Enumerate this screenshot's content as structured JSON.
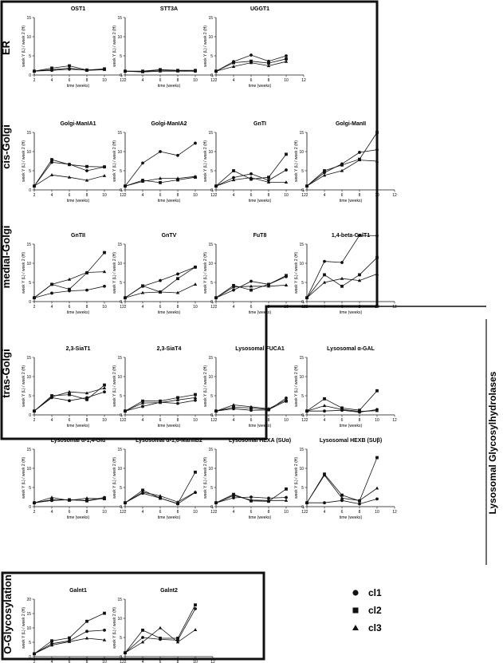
{
  "sections": {
    "er": "ER",
    "cis": "cis-Golgi",
    "medial": "medial-Golgi",
    "tras": "tras-Golgi",
    "lysosomal": "Lysosomal Glycosylhydrolases",
    "oglyc": "O-Glycosylation"
  },
  "legend": {
    "items": [
      {
        "label": "cl1",
        "marker": "circle"
      },
      {
        "label": "cl2",
        "marker": "square"
      },
      {
        "label": "cl3",
        "marker": "triangle"
      }
    ]
  },
  "axis_labels": {
    "xlabel": "time (weeks)",
    "ylabel": "week  Y  (L) / week 2  (H)"
  },
  "chart_data": [
    {
      "type": "line",
      "title": "OST1",
      "xlim": [
        2,
        12
      ],
      "ylim": [
        0,
        15
      ],
      "xticks": [
        2,
        4,
        6,
        8,
        10,
        12
      ],
      "yticks": [
        0,
        5,
        10,
        15
      ],
      "x": [
        2,
        4,
        6,
        8,
        10
      ],
      "series": [
        {
          "name": "cl1",
          "values": [
            1,
            1.2,
            1.5,
            1.3,
            1.5
          ]
        },
        {
          "name": "cl2",
          "values": [
            1,
            1.8,
            2.4,
            1.3,
            1.6
          ]
        },
        {
          "name": "cl3",
          "values": [
            1,
            1.4,
            1.8,
            1.2,
            1.4
          ]
        }
      ]
    },
    {
      "type": "line",
      "title": "STT3A",
      "xlim": [
        2,
        12
      ],
      "ylim": [
        0,
        15
      ],
      "xticks": [
        2,
        4,
        6,
        8,
        10,
        12
      ],
      "yticks": [
        0,
        5,
        10,
        15
      ],
      "x": [
        2,
        4,
        6,
        8,
        10
      ],
      "series": [
        {
          "name": "cl1",
          "values": [
            1,
            0.9,
            1.3,
            1.1,
            1.0
          ]
        },
        {
          "name": "cl2",
          "values": [
            1,
            1.0,
            1.4,
            1.2,
            1.2
          ]
        },
        {
          "name": "cl3",
          "values": [
            1,
            0.8,
            1.0,
            1.0,
            1.0
          ]
        }
      ]
    },
    {
      "type": "line",
      "title": "UGGT1",
      "xlim": [
        2,
        12
      ],
      "ylim": [
        0,
        15
      ],
      "xticks": [
        2,
        4,
        6,
        8,
        10,
        12
      ],
      "yticks": [
        0,
        5,
        10,
        15
      ],
      "x": [
        2,
        4,
        6,
        8,
        10
      ],
      "series": [
        {
          "name": "cl1",
          "values": [
            1,
            3.5,
            5.2,
            3.6,
            5.0
          ]
        },
        {
          "name": "cl2",
          "values": [
            1,
            3.2,
            3.6,
            3.1,
            4.2
          ]
        },
        {
          "name": "cl3",
          "values": [
            1,
            2.2,
            3.2,
            2.4,
            3.5
          ]
        }
      ]
    },
    {
      "type": "line",
      "title": "Golgi-ManIA1",
      "xlim": [
        2,
        12
      ],
      "ylim": [
        0,
        15
      ],
      "xticks": [
        2,
        4,
        6,
        8,
        10,
        12
      ],
      "yticks": [
        0,
        5,
        10,
        15
      ],
      "x": [
        2,
        4,
        6,
        8,
        10
      ],
      "series": [
        {
          "name": "cl1",
          "values": [
            1,
            7.2,
            6.7,
            5.0,
            6.0
          ]
        },
        {
          "name": "cl2",
          "values": [
            1,
            7.9,
            6.6,
            6.1,
            6.0
          ]
        },
        {
          "name": "cl3",
          "values": [
            1,
            3.9,
            3.3,
            2.5,
            3.7
          ]
        }
      ]
    },
    {
      "type": "line",
      "title": "Golgi-ManIA2",
      "xlim": [
        2,
        12
      ],
      "ylim": [
        0,
        15
      ],
      "xticks": [
        2,
        4,
        6,
        8,
        10,
        12
      ],
      "yticks": [
        0,
        5,
        10,
        15
      ],
      "x": [
        2,
        4,
        6,
        8,
        10
      ],
      "series": [
        {
          "name": "cl1",
          "values": [
            1,
            7.0,
            10.0,
            9.0,
            12.2
          ]
        },
        {
          "name": "cl2",
          "values": [
            1,
            2.5,
            1.9,
            2.6,
            3.3
          ]
        },
        {
          "name": "cl3",
          "values": [
            1,
            2.2,
            3.0,
            3.0,
            3.5
          ]
        }
      ]
    },
    {
      "type": "line",
      "title": "GnTI",
      "xlim": [
        2,
        12
      ],
      "ylim": [
        0,
        15
      ],
      "xticks": [
        2,
        4,
        6,
        8,
        10,
        12
      ],
      "yticks": [
        0,
        5,
        10,
        15
      ],
      "x": [
        2,
        4,
        6,
        8,
        10
      ],
      "series": [
        {
          "name": "cl1",
          "values": [
            1,
            3.2,
            4.2,
            2.5,
            5.2
          ]
        },
        {
          "name": "cl2",
          "values": [
            1,
            5.0,
            2.8,
            3.3,
            9.3
          ]
        },
        {
          "name": "cl3",
          "values": [
            1,
            2.6,
            3.2,
            2.0,
            2.0
          ]
        }
      ]
    },
    {
      "type": "line",
      "title": "Golgi-ManII",
      "xlim": [
        2,
        12
      ],
      "ylim": [
        0,
        15
      ],
      "xticks": [
        2,
        4,
        6,
        8,
        10,
        12
      ],
      "yticks": [
        0,
        5,
        10,
        15
      ],
      "x": [
        2,
        4,
        6,
        8,
        10
      ],
      "series": [
        {
          "name": "cl1",
          "values": [
            1,
            4.5,
            6.8,
            9.8,
            10.5
          ]
        },
        {
          "name": "cl2",
          "values": [
            1,
            5.0,
            6.5,
            8.0,
            15.0
          ]
        },
        {
          "name": "cl3",
          "values": [
            1,
            3.8,
            5.0,
            7.8,
            7.5
          ]
        }
      ]
    },
    {
      "type": "line",
      "title": "GnTII",
      "xlim": [
        2,
        12
      ],
      "ylim": [
        0,
        15
      ],
      "xticks": [
        2,
        4,
        6,
        8,
        10,
        12
      ],
      "yticks": [
        0,
        5,
        10,
        15
      ],
      "x": [
        2,
        4,
        6,
        8,
        10
      ],
      "series": [
        {
          "name": "cl1",
          "values": [
            1,
            2.2,
            2.8,
            3.0,
            4.0
          ]
        },
        {
          "name": "cl2",
          "values": [
            1,
            4.5,
            3.2,
            7.5,
            12.8
          ]
        },
        {
          "name": "cl3",
          "values": [
            1,
            4.5,
            5.8,
            7.6,
            7.8
          ]
        }
      ]
    },
    {
      "type": "line",
      "title": "GnTV",
      "xlim": [
        2,
        12
      ],
      "ylim": [
        0,
        15
      ],
      "xticks": [
        2,
        4,
        6,
        8,
        10,
        12
      ],
      "yticks": [
        0,
        5,
        10,
        15
      ],
      "x": [
        2,
        4,
        6,
        8,
        10
      ],
      "series": [
        {
          "name": "cl1",
          "values": [
            1,
            4.0,
            5.5,
            7.2,
            9.0
          ]
        },
        {
          "name": "cl2",
          "values": [
            1,
            4.1,
            2.5,
            6.0,
            9.0
          ]
        },
        {
          "name": "cl3",
          "values": [
            1,
            2.3,
            2.5,
            2.3,
            4.5
          ]
        }
      ]
    },
    {
      "type": "line",
      "title": "FuT8",
      "xlim": [
        2,
        12
      ],
      "ylim": [
        0,
        15
      ],
      "xticks": [
        2,
        4,
        6,
        8,
        10,
        12
      ],
      "yticks": [
        0,
        5,
        10,
        15
      ],
      "x": [
        2,
        4,
        6,
        8,
        10
      ],
      "series": [
        {
          "name": "cl1",
          "values": [
            1,
            3.0,
            5.3,
            4.5,
            6.5
          ]
        },
        {
          "name": "cl2",
          "values": [
            1,
            4.2,
            3.0,
            4.5,
            6.8
          ]
        },
        {
          "name": "cl3",
          "values": [
            1,
            3.8,
            4.0,
            4.0,
            4.3
          ]
        }
      ]
    },
    {
      "type": "line",
      "title": "1,4-beta-GalT1",
      "xlim": [
        2,
        12
      ],
      "ylim": [
        0,
        15
      ],
      "xticks": [
        2,
        4,
        6,
        8,
        10,
        12
      ],
      "yticks": [
        0,
        5,
        10,
        15
      ],
      "x": [
        2,
        4,
        6,
        8,
        10
      ],
      "series": [
        {
          "name": "cl1",
          "values": [
            1,
            10.5,
            10.2,
            17.3,
            17.2
          ]
        },
        {
          "name": "cl2",
          "values": [
            1,
            7.0,
            4.0,
            7.0,
            11.5
          ]
        },
        {
          "name": "cl3",
          "values": [
            1,
            5.0,
            6.0,
            5.5,
            7.2
          ]
        }
      ]
    },
    {
      "type": "line",
      "title": "2,3-SiaT1",
      "xlim": [
        2,
        12
      ],
      "ylim": [
        0,
        15
      ],
      "xticks": [
        2,
        4,
        6,
        8,
        10,
        12
      ],
      "yticks": [
        0,
        5,
        10,
        15
      ],
      "x": [
        2,
        4,
        6,
        8,
        10
      ],
      "series": [
        {
          "name": "cl1",
          "values": [
            1,
            4.5,
            3.7,
            4.5,
            6.0
          ]
        },
        {
          "name": "cl2",
          "values": [
            1,
            5.0,
            5.3,
            4.0,
            7.8
          ]
        },
        {
          "name": "cl3",
          "values": [
            1,
            4.7,
            6.0,
            5.7,
            7.0
          ]
        }
      ]
    },
    {
      "type": "line",
      "title": "2,3-SiaT4",
      "xlim": [
        2,
        12
      ],
      "ylim": [
        0,
        15
      ],
      "xticks": [
        2,
        4,
        6,
        8,
        10,
        12
      ],
      "yticks": [
        0,
        5,
        10,
        15
      ],
      "x": [
        2,
        4,
        6,
        8,
        10
      ],
      "series": [
        {
          "name": "cl1",
          "values": [
            1,
            2.2,
            3.3,
            3.0,
            3.8
          ]
        },
        {
          "name": "cl2",
          "values": [
            1,
            3.6,
            3.6,
            4.5,
            5.3
          ]
        },
        {
          "name": "cl3",
          "values": [
            1,
            3.1,
            3.2,
            3.9,
            4.5
          ]
        }
      ]
    },
    {
      "type": "line",
      "title": "Lysosomal FUCA1",
      "xlim": [
        2,
        12
      ],
      "ylim": [
        0,
        15
      ],
      "xticks": [
        2,
        4,
        6,
        8,
        10,
        12
      ],
      "yticks": [
        0,
        5,
        10,
        15
      ],
      "x": [
        2,
        4,
        6,
        8,
        10
      ],
      "series": [
        {
          "name": "cl1",
          "values": [
            1,
            1.6,
            1.2,
            1.3,
            4.4
          ]
        },
        {
          "name": "cl2",
          "values": [
            1,
            2.0,
            1.8,
            1.4,
            3.6
          ]
        },
        {
          "name": "cl3",
          "values": [
            1,
            2.6,
            2.1,
            1.6,
            3.9
          ]
        }
      ]
    },
    {
      "type": "line",
      "title": "Lysosomal α-GAL",
      "xlim": [
        2,
        12
      ],
      "ylim": [
        0,
        15
      ],
      "xticks": [
        2,
        4,
        6,
        8,
        10,
        12
      ],
      "yticks": [
        0,
        5,
        10,
        15
      ],
      "x": [
        2,
        4,
        6,
        8,
        10
      ],
      "series": [
        {
          "name": "cl1",
          "values": [
            1,
            1.0,
            1.2,
            0.7,
            1.4
          ]
        },
        {
          "name": "cl2",
          "values": [
            1,
            4.2,
            1.8,
            1.2,
            6.3
          ]
        },
        {
          "name": "cl3",
          "values": [
            1,
            2.4,
            1.4,
            0.9,
            1.1
          ]
        }
      ]
    },
    {
      "type": "line",
      "title": "Lysosomal α-1,4-Glu",
      "xlim": [
        2,
        12
      ],
      "ylim": [
        0,
        15
      ],
      "xticks": [
        2,
        4,
        6,
        8,
        10,
        12
      ],
      "yticks": [
        0,
        5,
        10,
        15
      ],
      "x": [
        2,
        4,
        6,
        8,
        10
      ],
      "series": [
        {
          "name": "cl1",
          "values": [
            1,
            1.6,
            1.8,
            1.6,
            2.4
          ]
        },
        {
          "name": "cl2",
          "values": [
            1,
            1.8,
            1.8,
            1.5,
            2.2
          ]
        },
        {
          "name": "cl3",
          "values": [
            1,
            2.4,
            1.6,
            2.2,
            2.0
          ]
        }
      ]
    },
    {
      "type": "line",
      "title": "Lysosomal α-1,6-ManIIB2",
      "xlim": [
        2,
        12
      ],
      "ylim": [
        0,
        15
      ],
      "xticks": [
        2,
        4,
        6,
        8,
        10,
        12
      ],
      "yticks": [
        0,
        5,
        10,
        15
      ],
      "x": [
        2,
        4,
        6,
        8,
        10
      ],
      "series": [
        {
          "name": "cl1",
          "values": [
            1,
            3.5,
            2.2,
            0.7,
            3.7
          ]
        },
        {
          "name": "cl2",
          "values": [
            1,
            4.3,
            2.2,
            0.8,
            9.0
          ]
        },
        {
          "name": "cl3",
          "values": [
            1,
            3.8,
            2.8,
            1.2,
            3.8
          ]
        }
      ]
    },
    {
      "type": "line",
      "title": "Lysosomal HEXA (SUα)",
      "xlim": [
        2,
        12
      ],
      "ylim": [
        0,
        15
      ],
      "xticks": [
        2,
        4,
        6,
        8,
        10,
        12
      ],
      "yticks": [
        0,
        5,
        10,
        15
      ],
      "x": [
        2,
        4,
        6,
        8,
        10
      ],
      "series": [
        {
          "name": "cl1",
          "values": [
            1,
            2.3,
            2.5,
            2.2,
            2.4
          ]
        },
        {
          "name": "cl2",
          "values": [
            1,
            3.2,
            1.5,
            1.4,
            4.6
          ]
        },
        {
          "name": "cl3",
          "values": [
            1,
            2.9,
            1.7,
            1.6,
            1.6
          ]
        }
      ]
    },
    {
      "type": "line",
      "title": "Lysosomal HEXB (SUβ)",
      "xlim": [
        2,
        12
      ],
      "ylim": [
        0,
        15
      ],
      "xticks": [
        2,
        4,
        6,
        8,
        10,
        12
      ],
      "yticks": [
        0,
        5,
        10,
        15
      ],
      "x": [
        2,
        4,
        6,
        8,
        10
      ],
      "series": [
        {
          "name": "cl1",
          "values": [
            1,
            1.0,
            1.6,
            0.7,
            2.0
          ]
        },
        {
          "name": "cl2",
          "values": [
            1,
            8.5,
            3.0,
            1.5,
            12.8
          ]
        },
        {
          "name": "cl3",
          "values": [
            1,
            8.2,
            2.2,
            1.6,
            4.8
          ]
        }
      ]
    },
    {
      "type": "line",
      "title": "Galnt1",
      "xlim": [
        2,
        12
      ],
      "ylim": [
        0,
        20
      ],
      "xticks": [
        2,
        4,
        6,
        8,
        10,
        12
      ],
      "yticks": [
        0,
        5,
        10,
        15,
        20
      ],
      "x": [
        2,
        4,
        6,
        8,
        10
      ],
      "series": [
        {
          "name": "cl1",
          "values": [
            1,
            4.5,
            5.5,
            8.8,
            9.2
          ]
        },
        {
          "name": "cl2",
          "values": [
            1,
            5.5,
            6.5,
            12.3,
            15.1
          ]
        },
        {
          "name": "cl3",
          "values": [
            1,
            4.0,
            5.2,
            6.4,
            5.8
          ]
        }
      ]
    },
    {
      "type": "line",
      "title": "Galnt2",
      "xlim": [
        2,
        12
      ],
      "ylim": [
        0,
        15
      ],
      "xticks": [
        2,
        4,
        6,
        8,
        10,
        12
      ],
      "yticks": [
        0,
        5,
        10,
        15
      ],
      "x": [
        2,
        4,
        6,
        8,
        10
      ],
      "series": [
        {
          "name": "cl1",
          "values": [
            1,
            5.0,
            4.5,
            4.3,
            12.5
          ]
        },
        {
          "name": "cl2",
          "values": [
            1,
            6.9,
            4.8,
            4.8,
            13.5
          ]
        },
        {
          "name": "cl3",
          "values": [
            1,
            3.8,
            7.5,
            3.8,
            7.0
          ]
        }
      ]
    }
  ]
}
